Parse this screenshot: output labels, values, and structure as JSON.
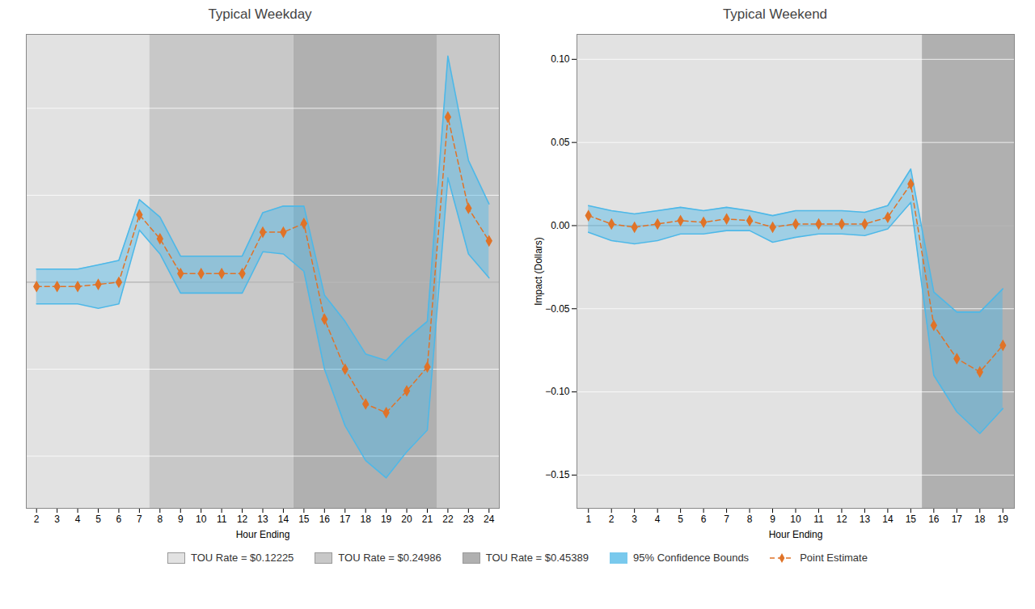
{
  "chart_data": [
    {
      "type": "line",
      "title": "Typical Weekday",
      "xlabel": "Hour Ending",
      "x": [
        2,
        3,
        4,
        5,
        6,
        7,
        8,
        9,
        10,
        11,
        12,
        13,
        14,
        15,
        16,
        17,
        18,
        19,
        20,
        21,
        22,
        23,
        24
      ],
      "xlim": [
        1.5,
        24.5
      ],
      "xticks": [
        2,
        3,
        4,
        5,
        6,
        7,
        8,
        9,
        10,
        11,
        12,
        13,
        14,
        15,
        16,
        17,
        18,
        19,
        20,
        21,
        22,
        23,
        24
      ],
      "ylim": [
        -0.52,
        0.57
      ],
      "yticks": [
        -0.4,
        -0.2,
        0,
        0.2,
        0.4
      ],
      "grid": true,
      "tick_labels": "x",
      "legend": "bottom",
      "hlines": [
        0
      ],
      "spans": [
        {
          "x0": 1.5,
          "x1": 7.5,
          "name": "TOU Rate = $0.12225",
          "color": "#e2e2e2"
        },
        {
          "x0": 7.5,
          "x1": 14.5,
          "name": "TOU Rate = $0.24986",
          "color": "#c8c8c8"
        },
        {
          "x0": 14.5,
          "x1": 21.5,
          "name": "TOU Rate = $0.45389",
          "color": "#b0b0b0"
        },
        {
          "x0": 21.5,
          "x1": 24.5,
          "name": "TOU Rate = $0.24986",
          "color": "#c8c8c8"
        }
      ],
      "series": [
        {
          "name": "95% Confidence Bounds",
          "type": "area",
          "color": "#4db8e8",
          "upper": [
            0.03,
            0.03,
            0.03,
            0.04,
            0.05,
            0.19,
            0.15,
            0.06,
            0.06,
            0.06,
            0.06,
            0.16,
            0.175,
            0.175,
            -0.03,
            -0.09,
            -0.165,
            -0.18,
            -0.13,
            -0.09,
            0.52,
            0.28,
            0.18
          ],
          "lower": [
            -0.05,
            -0.05,
            -0.05,
            -0.06,
            -0.05,
            0.12,
            0.065,
            -0.025,
            -0.025,
            -0.025,
            -0.025,
            0.07,
            0.065,
            0.025,
            -0.2,
            -0.33,
            -0.41,
            -0.45,
            -0.39,
            -0.34,
            0.24,
            0.065,
            0.01
          ]
        },
        {
          "name": "Point Estimate",
          "type": "line",
          "color": "#e07328",
          "line_style": "dashed",
          "marker": "diamond",
          "values": [
            -0.01,
            -0.01,
            -0.01,
            -0.005,
            0.0,
            0.155,
            0.1,
            0.02,
            0.02,
            0.02,
            0.02,
            0.115,
            0.115,
            0.135,
            -0.085,
            -0.2,
            -0.28,
            -0.3,
            -0.25,
            -0.195,
            0.38,
            0.17,
            0.095
          ]
        }
      ]
    },
    {
      "type": "line",
      "title": "Typical Weekend",
      "xlabel": "Hour Ending",
      "ylabel": "Impact (Dollars)",
      "x": [
        1,
        2,
        3,
        4,
        5,
        6,
        7,
        8,
        9,
        10,
        11,
        12,
        13,
        14,
        15,
        16,
        17,
        18,
        19
      ],
      "xlim": [
        0.5,
        19.5
      ],
      "xticks": [
        1,
        2,
        3,
        4,
        5,
        6,
        7,
        8,
        9,
        10,
        11,
        12,
        13,
        14,
        15,
        16,
        17,
        18,
        19
      ],
      "ylim": [
        -0.17,
        0.115
      ],
      "yticks": [
        {
          "value": -0.15,
          "label": "−0.15"
        },
        {
          "value": -0.1,
          "label": "−0.10"
        },
        {
          "value": -0.05,
          "label": "−0.05"
        },
        {
          "value": 0,
          "label": "0.00"
        },
        {
          "value": 0.05,
          "label": "0.05"
        },
        {
          "value": 0.1,
          "label": "0.10"
        }
      ],
      "grid": true,
      "legend": "bottom",
      "hlines": [
        0
      ],
      "spans": [
        {
          "x0": 0.5,
          "x1": 15.5,
          "name": "TOU Rate = $0.12225",
          "color": "#e2e2e2"
        },
        {
          "x0": 15.5,
          "x1": 19.5,
          "name": "TOU Rate = $0.45389",
          "color": "#b0b0b0"
        }
      ],
      "series": [
        {
          "name": "95% Confidence Bounds",
          "type": "area",
          "color": "#4db8e8",
          "upper": [
            0.012,
            0.009,
            0.007,
            0.009,
            0.011,
            0.009,
            0.011,
            0.009,
            0.006,
            0.009,
            0.009,
            0.009,
            0.008,
            0.012,
            0.034,
            -0.04,
            -0.052,
            -0.052,
            -0.038
          ],
          "lower": [
            -0.004,
            -0.009,
            -0.011,
            -0.009,
            -0.005,
            -0.005,
            -0.003,
            -0.003,
            -0.01,
            -0.007,
            -0.005,
            -0.005,
            -0.006,
            -0.002,
            0.014,
            -0.09,
            -0.112,
            -0.125,
            -0.11
          ]
        },
        {
          "name": "Point Estimate",
          "type": "line",
          "color": "#e07328",
          "line_style": "dashed",
          "marker": "diamond",
          "values": [
            0.006,
            0.001,
            -0.001,
            0.001,
            0.003,
            0.002,
            0.004,
            0.003,
            -0.001,
            0.001,
            0.001,
            0.001,
            0.001,
            0.005,
            0.025,
            -0.06,
            -0.08,
            -0.088,
            -0.072
          ]
        }
      ]
    }
  ]
}
